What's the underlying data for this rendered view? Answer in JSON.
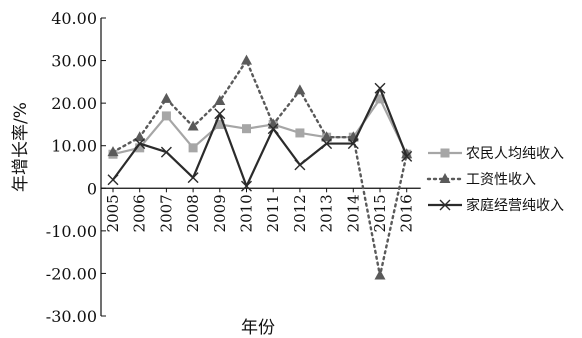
{
  "chart_data": {
    "type": "line",
    "xlabel": "年份",
    "ylabel": "年增长率/%",
    "ylim": [
      -30,
      40
    ],
    "yticks": [
      "40.00",
      "30.00",
      "20.00",
      "10.00",
      "0",
      "-10.00",
      "-20.00",
      "-30.00"
    ],
    "categories": [
      "2005",
      "2006",
      "2007",
      "2008",
      "2009",
      "2010",
      "2011",
      "2012",
      "2013",
      "2014",
      "2015",
      "2016"
    ],
    "legend_position": "right",
    "series": [
      {
        "name": "农民人均纯收入",
        "values": [
          8,
          9.5,
          17,
          9.5,
          15,
          14,
          15,
          13,
          12,
          12,
          21,
          8
        ],
        "color": "#a6a6a6",
        "line_style": "solid",
        "marker": "square"
      },
      {
        "name": "工资性收入",
        "values": [
          8.5,
          12,
          21,
          14.5,
          20.5,
          30,
          15,
          23,
          12,
          12,
          -20.5,
          8
        ],
        "color": "#5a5a5a",
        "line_style": "dotted",
        "marker": "triangle"
      },
      {
        "name": "家庭经营纯收入",
        "values": [
          2,
          10.5,
          8.5,
          2.5,
          17.5,
          0.5,
          14,
          5.5,
          10.5,
          10.5,
          23.5,
          7.5
        ],
        "color": "#2b2b2b",
        "line_style": "solid",
        "marker": "x"
      }
    ]
  }
}
